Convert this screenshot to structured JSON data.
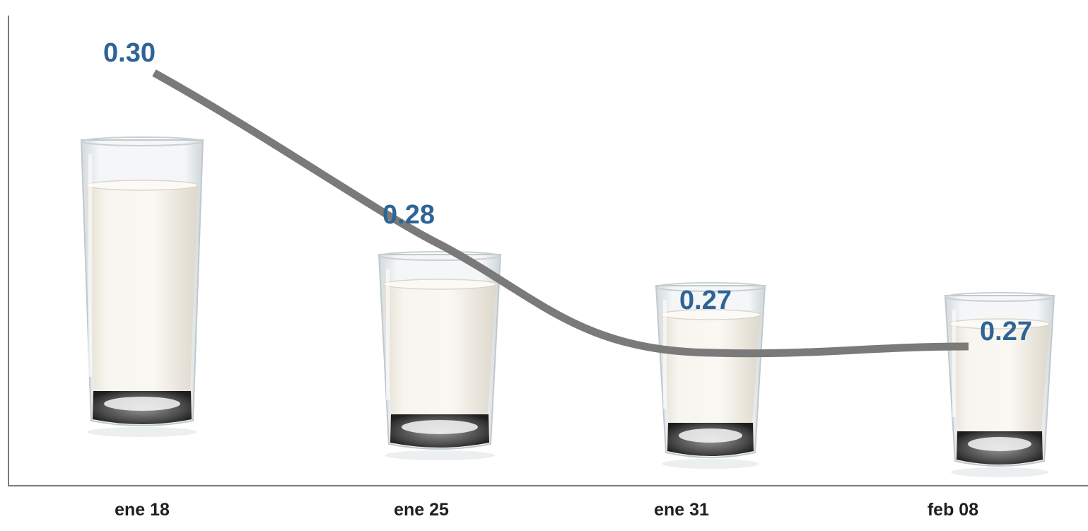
{
  "chart_data": {
    "type": "line",
    "categories": [
      "ene 18",
      "ene 25",
      "ene 31",
      "feb 08"
    ],
    "values": [
      0.3,
      0.28,
      0.27,
      0.27
    ],
    "data_labels": [
      "0.30",
      "0.28",
      "0.27",
      "0.27"
    ],
    "title": "",
    "xlabel": "",
    "ylabel": "",
    "markers": "glass-of-milk-icon",
    "line_style": "smoothed",
    "grid": false,
    "legend": "none"
  },
  "colors": {
    "line": "#7a7a7a",
    "data_label": "#2e6496",
    "axis": "#7a7a7a",
    "milk": "#f4f1ea",
    "glass_base": "#3a3a3a"
  }
}
